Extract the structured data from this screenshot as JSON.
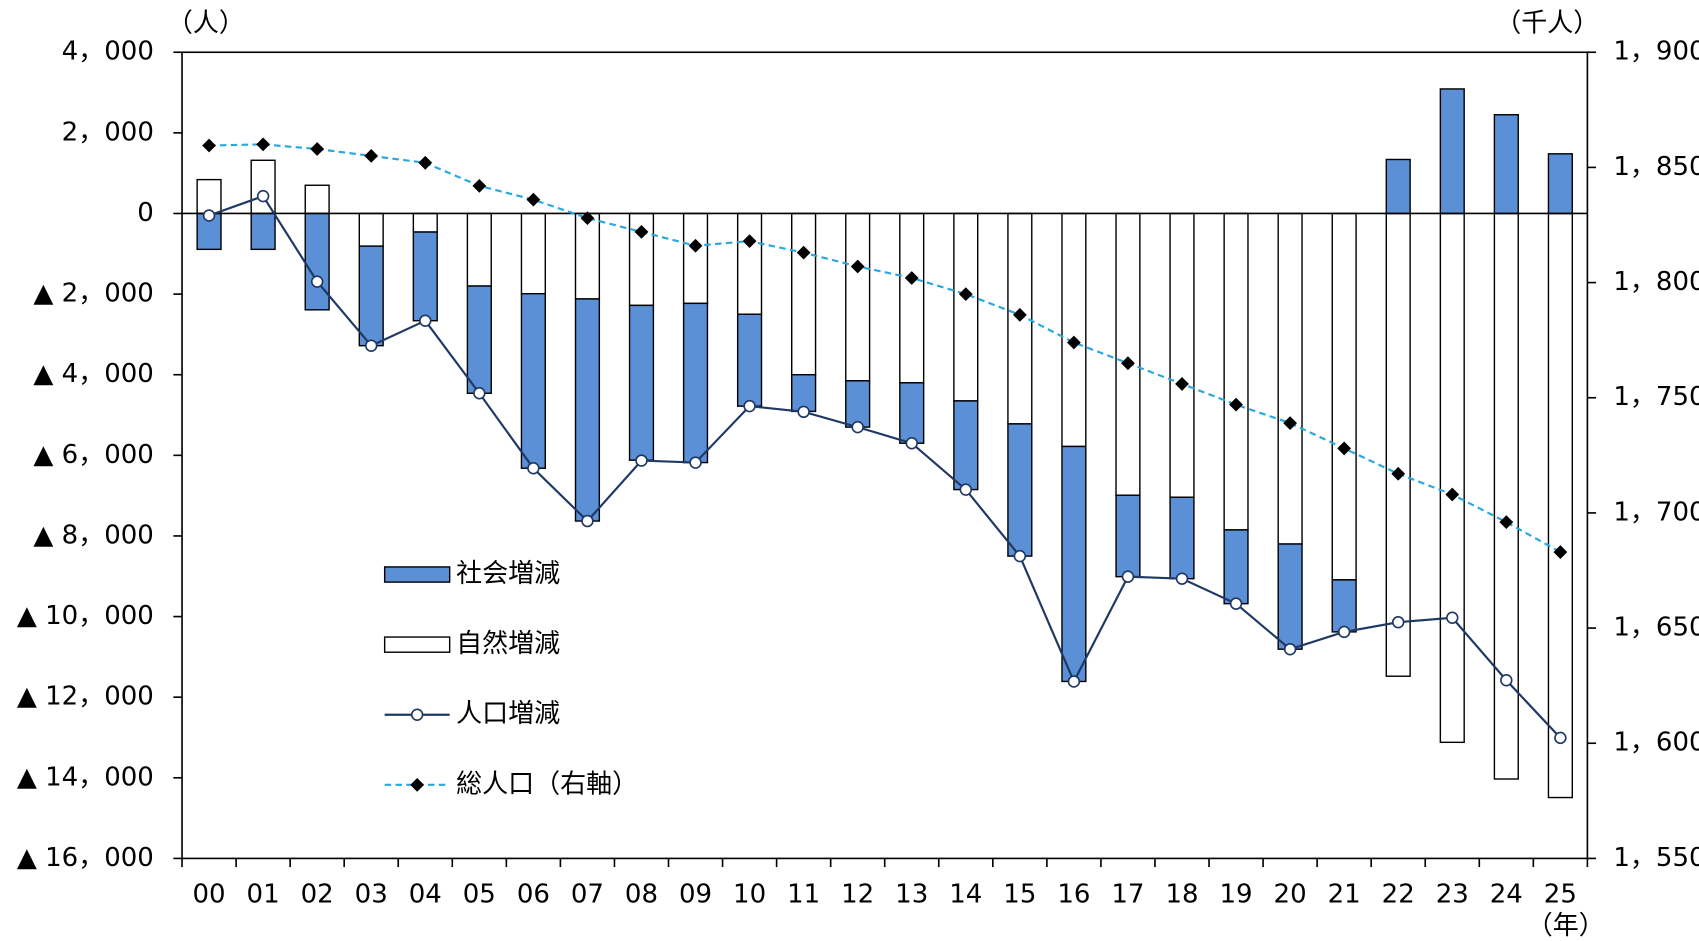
{
  "chart_data": {
    "type": "bar",
    "y_label": "（人）",
    "y2_label": "（千人）",
    "x_label": "（年）",
    "categories": [
      "00",
      "01",
      "02",
      "03",
      "04",
      "05",
      "06",
      "07",
      "08",
      "09",
      "10",
      "11",
      "12",
      "13",
      "14",
      "15",
      "16",
      "17",
      "18",
      "19",
      "20",
      "21",
      "22",
      "23",
      "24",
      "25"
    ],
    "series": [
      {
        "name": "社会増減",
        "type": "bar",
        "color": "#5b8fd6",
        "values": [
          -890,
          -890,
          -2390,
          -2470,
          -2200,
          -2660,
          -4330,
          -5510,
          -3840,
          -3950,
          -2280,
          -910,
          -1150,
          -1500,
          -2200,
          -3280,
          -5830,
          -2020,
          -2020,
          -1830,
          -2610,
          -1290,
          1340,
          3090,
          2450,
          1480
        ]
      },
      {
        "name": "自然増減",
        "type": "bar",
        "color": "#ffffff",
        "values": [
          840,
          1320,
          700,
          -810,
          -460,
          -1800,
          -1990,
          -2120,
          -2280,
          -2230,
          -2500,
          -4000,
          -4150,
          -4200,
          -4650,
          -5220,
          -5780,
          -6990,
          -7040,
          -7850,
          -8200,
          -9090,
          -11480,
          -13120,
          -14030,
          -14490
        ]
      },
      {
        "name": "人口増減",
        "type": "line",
        "color": "#1f3864",
        "values": [
          -50,
          430,
          -1690,
          -3280,
          -2660,
          -4460,
          -6320,
          -7630,
          -6130,
          -6180,
          -4780,
          -4920,
          -5300,
          -5700,
          -6850,
          -8500,
          -11610,
          -9010,
          -9060,
          -9680,
          -10810,
          -10380,
          -10140,
          -10030,
          -11580,
          -13010
        ]
      },
      {
        "name": "総人口（右軸）",
        "type": "line",
        "axis": "y2",
        "dashed": true,
        "color": "#29a8e0",
        "values": [
          1859.5,
          1860,
          1858,
          1855,
          1852,
          1842,
          1836,
          1828,
          1822,
          1816,
          1818,
          1813,
          1807,
          1802,
          1795,
          1786,
          1774,
          1765,
          1756,
          1747,
          1739,
          1728,
          1717,
          1708,
          1696,
          1683
        ]
      }
    ],
    "ylim": [
      -16000,
      4000
    ],
    "yticks": [
      {
        "value": 4000,
        "label": "4，000"
      },
      {
        "value": 2000,
        "label": "2，000"
      },
      0,
      {
        "value": -2000,
        "label": "▲ 2，000"
      },
      {
        "value": -4000,
        "label": "▲ 4，000"
      },
      {
        "value": -6000,
        "label": "▲ 6，000"
      },
      {
        "value": -8000,
        "label": "▲ 8，000"
      },
      {
        "value": -10000,
        "label": "▲ 10，000"
      },
      {
        "value": -12000,
        "label": "▲ 12，000"
      },
      {
        "value": -14000,
        "label": "▲ 14，000"
      },
      {
        "value": -16000,
        "label": "▲ 16，000"
      }
    ],
    "y2lim": [
      1550,
      1900
    ],
    "y2ticks": [
      {
        "value": 1900,
        "label": "1，900"
      },
      {
        "value": 1850,
        "label": "1，850"
      },
      {
        "value": 1800,
        "label": "1，800"
      },
      {
        "value": 1750,
        "label": "1，750"
      },
      {
        "value": 1700,
        "label": "1，700"
      },
      {
        "value": 1650,
        "label": "1，650"
      },
      {
        "value": 1600,
        "label": "1，600"
      },
      {
        "value": 1550,
        "label": "1，550"
      }
    ]
  }
}
